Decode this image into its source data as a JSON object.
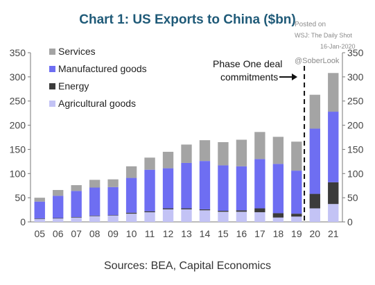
{
  "chart_data": {
    "type": "bar",
    "stacked": true,
    "title": "Chart 1: US Exports to China ($bn)",
    "categories": [
      "05",
      "06",
      "07",
      "08",
      "09",
      "10",
      "11",
      "12",
      "13",
      "14",
      "15",
      "16",
      "17",
      "18",
      "19",
      "20",
      "21"
    ],
    "series": [
      {
        "name": "Agricultural goods",
        "color": "#c3c3f5",
        "values": [
          6,
          7,
          9,
          12,
          13,
          17,
          20,
          26,
          26,
          24,
          21,
          21,
          20,
          9,
          11,
          28,
          37
        ]
      },
      {
        "name": "Energy",
        "color": "#3b3b3b",
        "values": [
          1,
          1,
          1,
          1,
          1,
          2,
          2,
          2,
          2,
          2,
          2,
          3,
          8,
          9,
          6,
          30,
          45
        ]
      },
      {
        "name": "Manufactured goods",
        "color": "#6e6ef2",
        "values": [
          35,
          46,
          54,
          58,
          58,
          72,
          86,
          83,
          94,
          100,
          94,
          91,
          102,
          102,
          89,
          135,
          146
        ]
      },
      {
        "name": "Services",
        "color": "#a4a4a4",
        "values": [
          8,
          12,
          12,
          16,
          16,
          24,
          25,
          34,
          38,
          43,
          48,
          55,
          56,
          56,
          60,
          70,
          80
        ]
      }
    ],
    "ylim": [
      0,
      350
    ],
    "yticks": [
      0,
      50,
      100,
      150,
      200,
      250,
      300,
      350
    ],
    "grid": false,
    "legend_position": "top-left",
    "legend_order": [
      "Services",
      "Manufactured goods",
      "Energy",
      "Agricultural goods"
    ],
    "annotation": {
      "lines": [
        "Phase One deal",
        "commitments"
      ],
      "divider_after": "19"
    },
    "source": "Sources: BEA, Capital Economics"
  },
  "watermark": {
    "posted": "Posted on",
    "source": "WSJ: The Daily Shot",
    "date": "16-Jan-2020",
    "handle": "@SoberLook"
  }
}
